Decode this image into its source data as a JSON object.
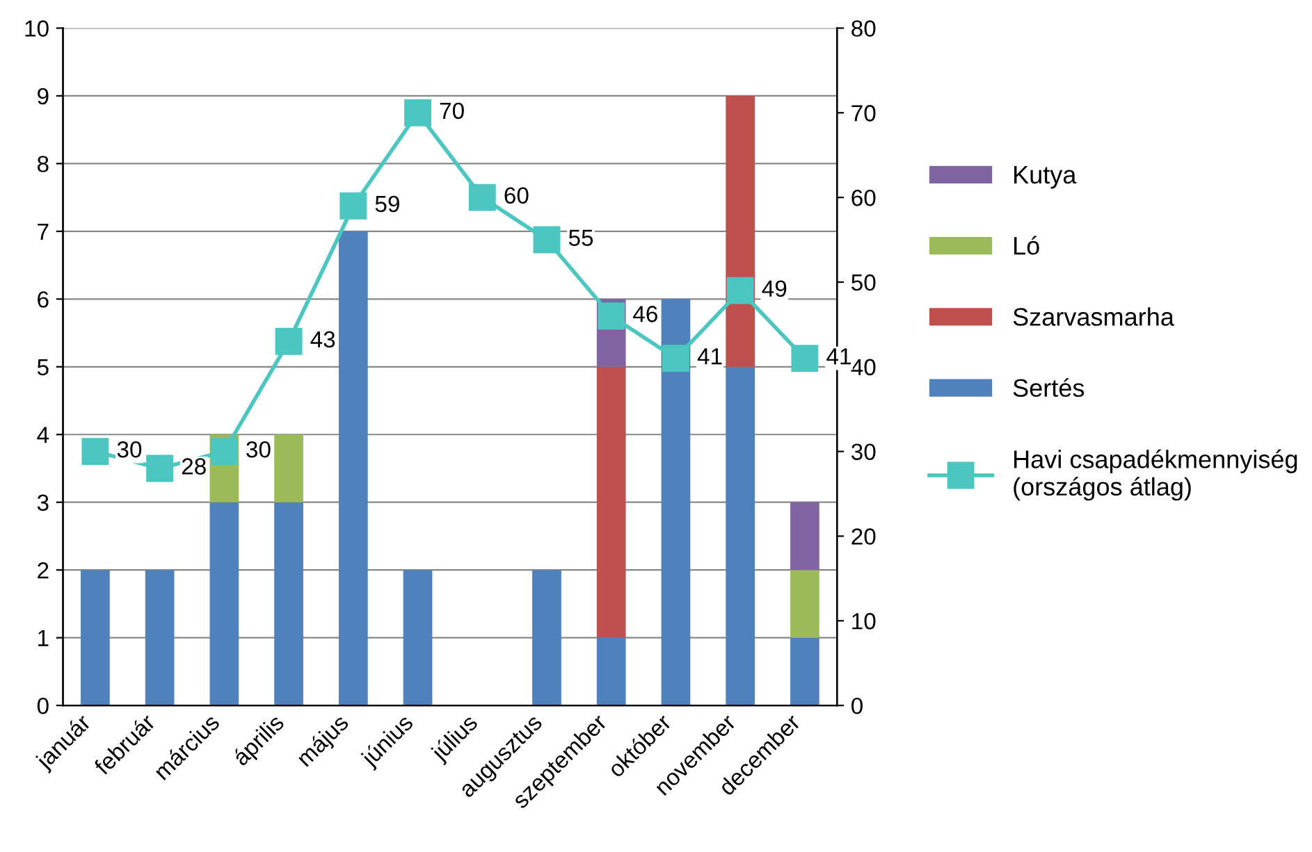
{
  "chart_data": {
    "type": "bar",
    "stacked": true,
    "categories": [
      "január",
      "február",
      "március",
      "április",
      "május",
      "június",
      "július",
      "augusztus",
      "szeptember",
      "október",
      "november",
      "december"
    ],
    "series": [
      {
        "name": "Sertés",
        "color": "#4f81bd",
        "values": [
          2,
          2,
          3,
          3,
          7,
          2,
          0,
          2,
          1,
          6,
          5,
          1
        ]
      },
      {
        "name": "Szarvasmarha",
        "color": "#c0504d",
        "values": [
          0,
          0,
          0,
          0,
          0,
          0,
          0,
          0,
          4,
          0,
          4,
          0
        ]
      },
      {
        "name": "Ló",
        "color": "#9bbb59",
        "values": [
          0,
          0,
          1,
          1,
          0,
          0,
          0,
          0,
          0,
          0,
          0,
          1
        ]
      },
      {
        "name": "Kutya",
        "color": "#8064a2",
        "values": [
          0,
          0,
          0,
          0,
          0,
          0,
          0,
          0,
          1,
          0,
          0,
          1
        ]
      },
      {
        "name": "Havi csapadékmennyiség\n(országos átlag)",
        "type": "line",
        "axis": "y2",
        "color": "#4bc6c0",
        "marker": "square",
        "values": [
          30,
          28,
          30,
          43,
          59,
          70,
          60,
          55,
          46,
          41,
          49,
          41
        ],
        "value_labels": [
          "30",
          "28",
          "30",
          "43",
          "59",
          "70",
          "60",
          "55",
          "46",
          "41",
          "49",
          "41"
        ]
      }
    ],
    "ylim": [
      0,
      10
    ],
    "yticks": [
      0,
      1,
      2,
      3,
      4,
      5,
      6,
      7,
      8,
      9,
      10
    ],
    "y2lim": [
      0,
      80
    ],
    "y2ticks": [
      0,
      10,
      20,
      30,
      40,
      50,
      60,
      70,
      80
    ],
    "grid": "y",
    "legend": "right"
  }
}
